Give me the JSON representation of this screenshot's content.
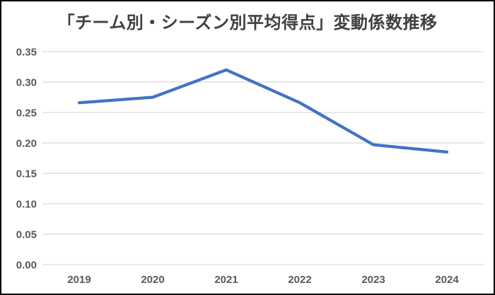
{
  "chart_data": {
    "type": "line",
    "title": "「チーム別・シーズン別平均得点」変動係数推移",
    "categories": [
      "2019",
      "2020",
      "2021",
      "2022",
      "2023",
      "2024"
    ],
    "series": [
      {
        "values": [
          0.266,
          0.275,
          0.32,
          0.266,
          0.197,
          0.185
        ],
        "color": "#4472C4"
      }
    ],
    "ylim": [
      0,
      0.35
    ],
    "ytick_step": 0.05,
    "ytick_labels": [
      "0.00",
      "0.05",
      "0.10",
      "0.15",
      "0.20",
      "0.25",
      "0.30",
      "0.35"
    ],
    "grid": true,
    "gridline_color": "#d9d9d9",
    "axis_label_color": "#595959",
    "title_color": "#404040",
    "legend_position": "none",
    "markers": false
  }
}
